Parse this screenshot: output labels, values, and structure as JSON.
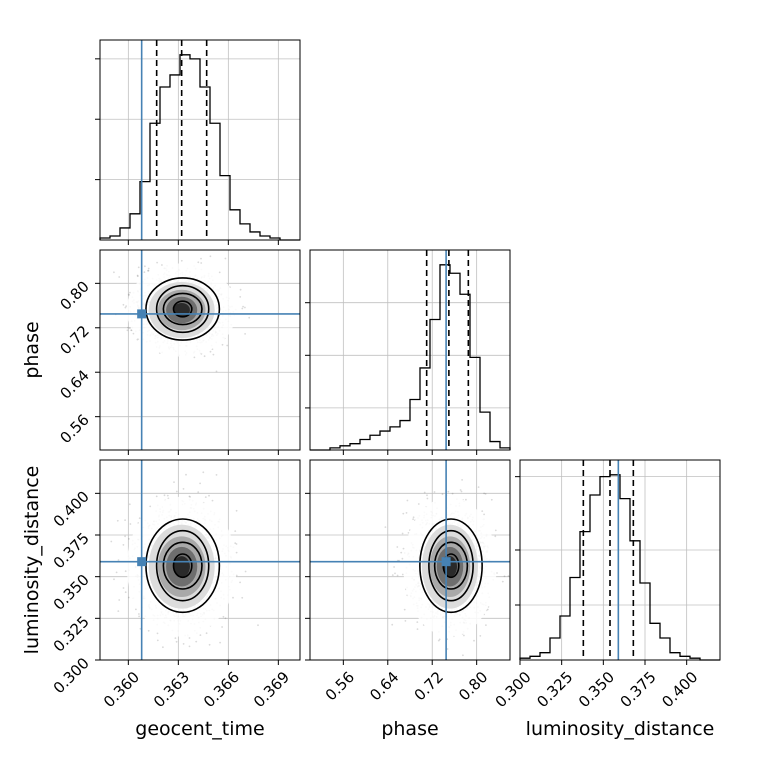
{
  "chart_data": {
    "type": "corner",
    "parameters": [
      "geocent_time",
      "phase",
      "luminosity_distance"
    ],
    "axis_labels": {
      "geocent_time": "geocent_time",
      "phase": "phase",
      "luminosity_distance": "luminosity_distance"
    },
    "ranges": {
      "geocent_time": [
        0.3583,
        0.3703
      ],
      "phase": [
        0.5,
        0.86
      ],
      "luminosity_distance": [
        0.3,
        0.42
      ]
    },
    "ticks": {
      "geocent_time": [
        0.36,
        0.363,
        0.366,
        0.369
      ],
      "phase": [
        0.56,
        0.64,
        0.72,
        0.8
      ],
      "luminosity_distance": [
        0.3,
        0.325,
        0.35,
        0.375,
        0.4
      ]
    },
    "tick_labels": {
      "geocent_time": [
        "0.360",
        "0.363",
        "0.366",
        "0.369"
      ],
      "phase": [
        "0.56",
        "0.64",
        "0.72",
        "0.80"
      ],
      "luminosity_distance": [
        "0.300",
        "0.325",
        "0.350",
        "0.375",
        "0.400"
      ]
    },
    "truths": {
      "geocent_time": 0.3608,
      "phase": 0.745,
      "luminosity_distance": 0.359
    },
    "quantiles": {
      "geocent_time": [
        0.3617,
        0.3632,
        0.3647
      ],
      "phase": [
        0.71,
        0.75,
        0.785
      ],
      "luminosity_distance": [
        0.338,
        0.354,
        0.368
      ]
    },
    "histograms": {
      "geocent_time": {
        "edges": [
          0.3583,
          0.3589,
          0.3595,
          0.3601,
          0.3607,
          0.3613,
          0.3619,
          0.3625,
          0.3631,
          0.3637,
          0.3643,
          0.3649,
          0.3655,
          0.3661,
          0.3667,
          0.3673,
          0.3679,
          0.3685,
          0.3691,
          0.3697,
          0.3703
        ],
        "counts": [
          1,
          2,
          6,
          13,
          29,
          58,
          76,
          82,
          92,
          90,
          76,
          58,
          32,
          15,
          8,
          4,
          2,
          1,
          0,
          0
        ]
      },
      "phase": {
        "edges": [
          0.5,
          0.518,
          0.536,
          0.554,
          0.572,
          0.59,
          0.608,
          0.626,
          0.644,
          0.662,
          0.68,
          0.698,
          0.716,
          0.734,
          0.752,
          0.77,
          0.788,
          0.806,
          0.824,
          0.842,
          0.86
        ],
        "counts": [
          0,
          0,
          1,
          2,
          3,
          5,
          7,
          9,
          11,
          14,
          24,
          39,
          62,
          88,
          84,
          74,
          44,
          18,
          4,
          1
        ]
      },
      "luminosity_distance": {
        "edges": [
          0.3,
          0.306,
          0.312,
          0.318,
          0.324,
          0.33,
          0.336,
          0.342,
          0.348,
          0.354,
          0.36,
          0.366,
          0.372,
          0.378,
          0.384,
          0.39,
          0.396,
          0.402,
          0.408,
          0.414,
          0.42
        ],
        "counts": [
          1,
          2,
          4,
          12,
          24,
          45,
          70,
          90,
          100,
          101,
          88,
          65,
          42,
          20,
          12,
          4,
          2,
          1,
          0,
          0
        ]
      }
    },
    "histogram_yticks": {
      "geocent_time": [
        30,
        60,
        90
      ],
      "phase": [
        20,
        45,
        70
      ],
      "luminosity_distance": [
        30,
        60,
        100
      ]
    },
    "joint": {
      "phase|geocent_time": {
        "center": [
          0.3632,
          0.752
        ],
        "std": [
          0.0011,
          0.028
        ]
      },
      "luminosity_distance|geocent_time": {
        "center": [
          0.3632,
          0.356
        ],
        "std": [
          0.0011,
          0.014
        ]
      },
      "luminosity_distance|phase": {
        "center": [
          0.752,
          0.356
        ],
        "std": [
          0.028,
          0.014
        ]
      }
    },
    "contour_levels": [
      0.5,
      1.0,
      1.5,
      2.0
    ],
    "colors": {
      "truth": "#4682b4",
      "hist": "#000000",
      "grid": "#c0c0c0",
      "samples": "#555555"
    },
    "grid": true
  }
}
